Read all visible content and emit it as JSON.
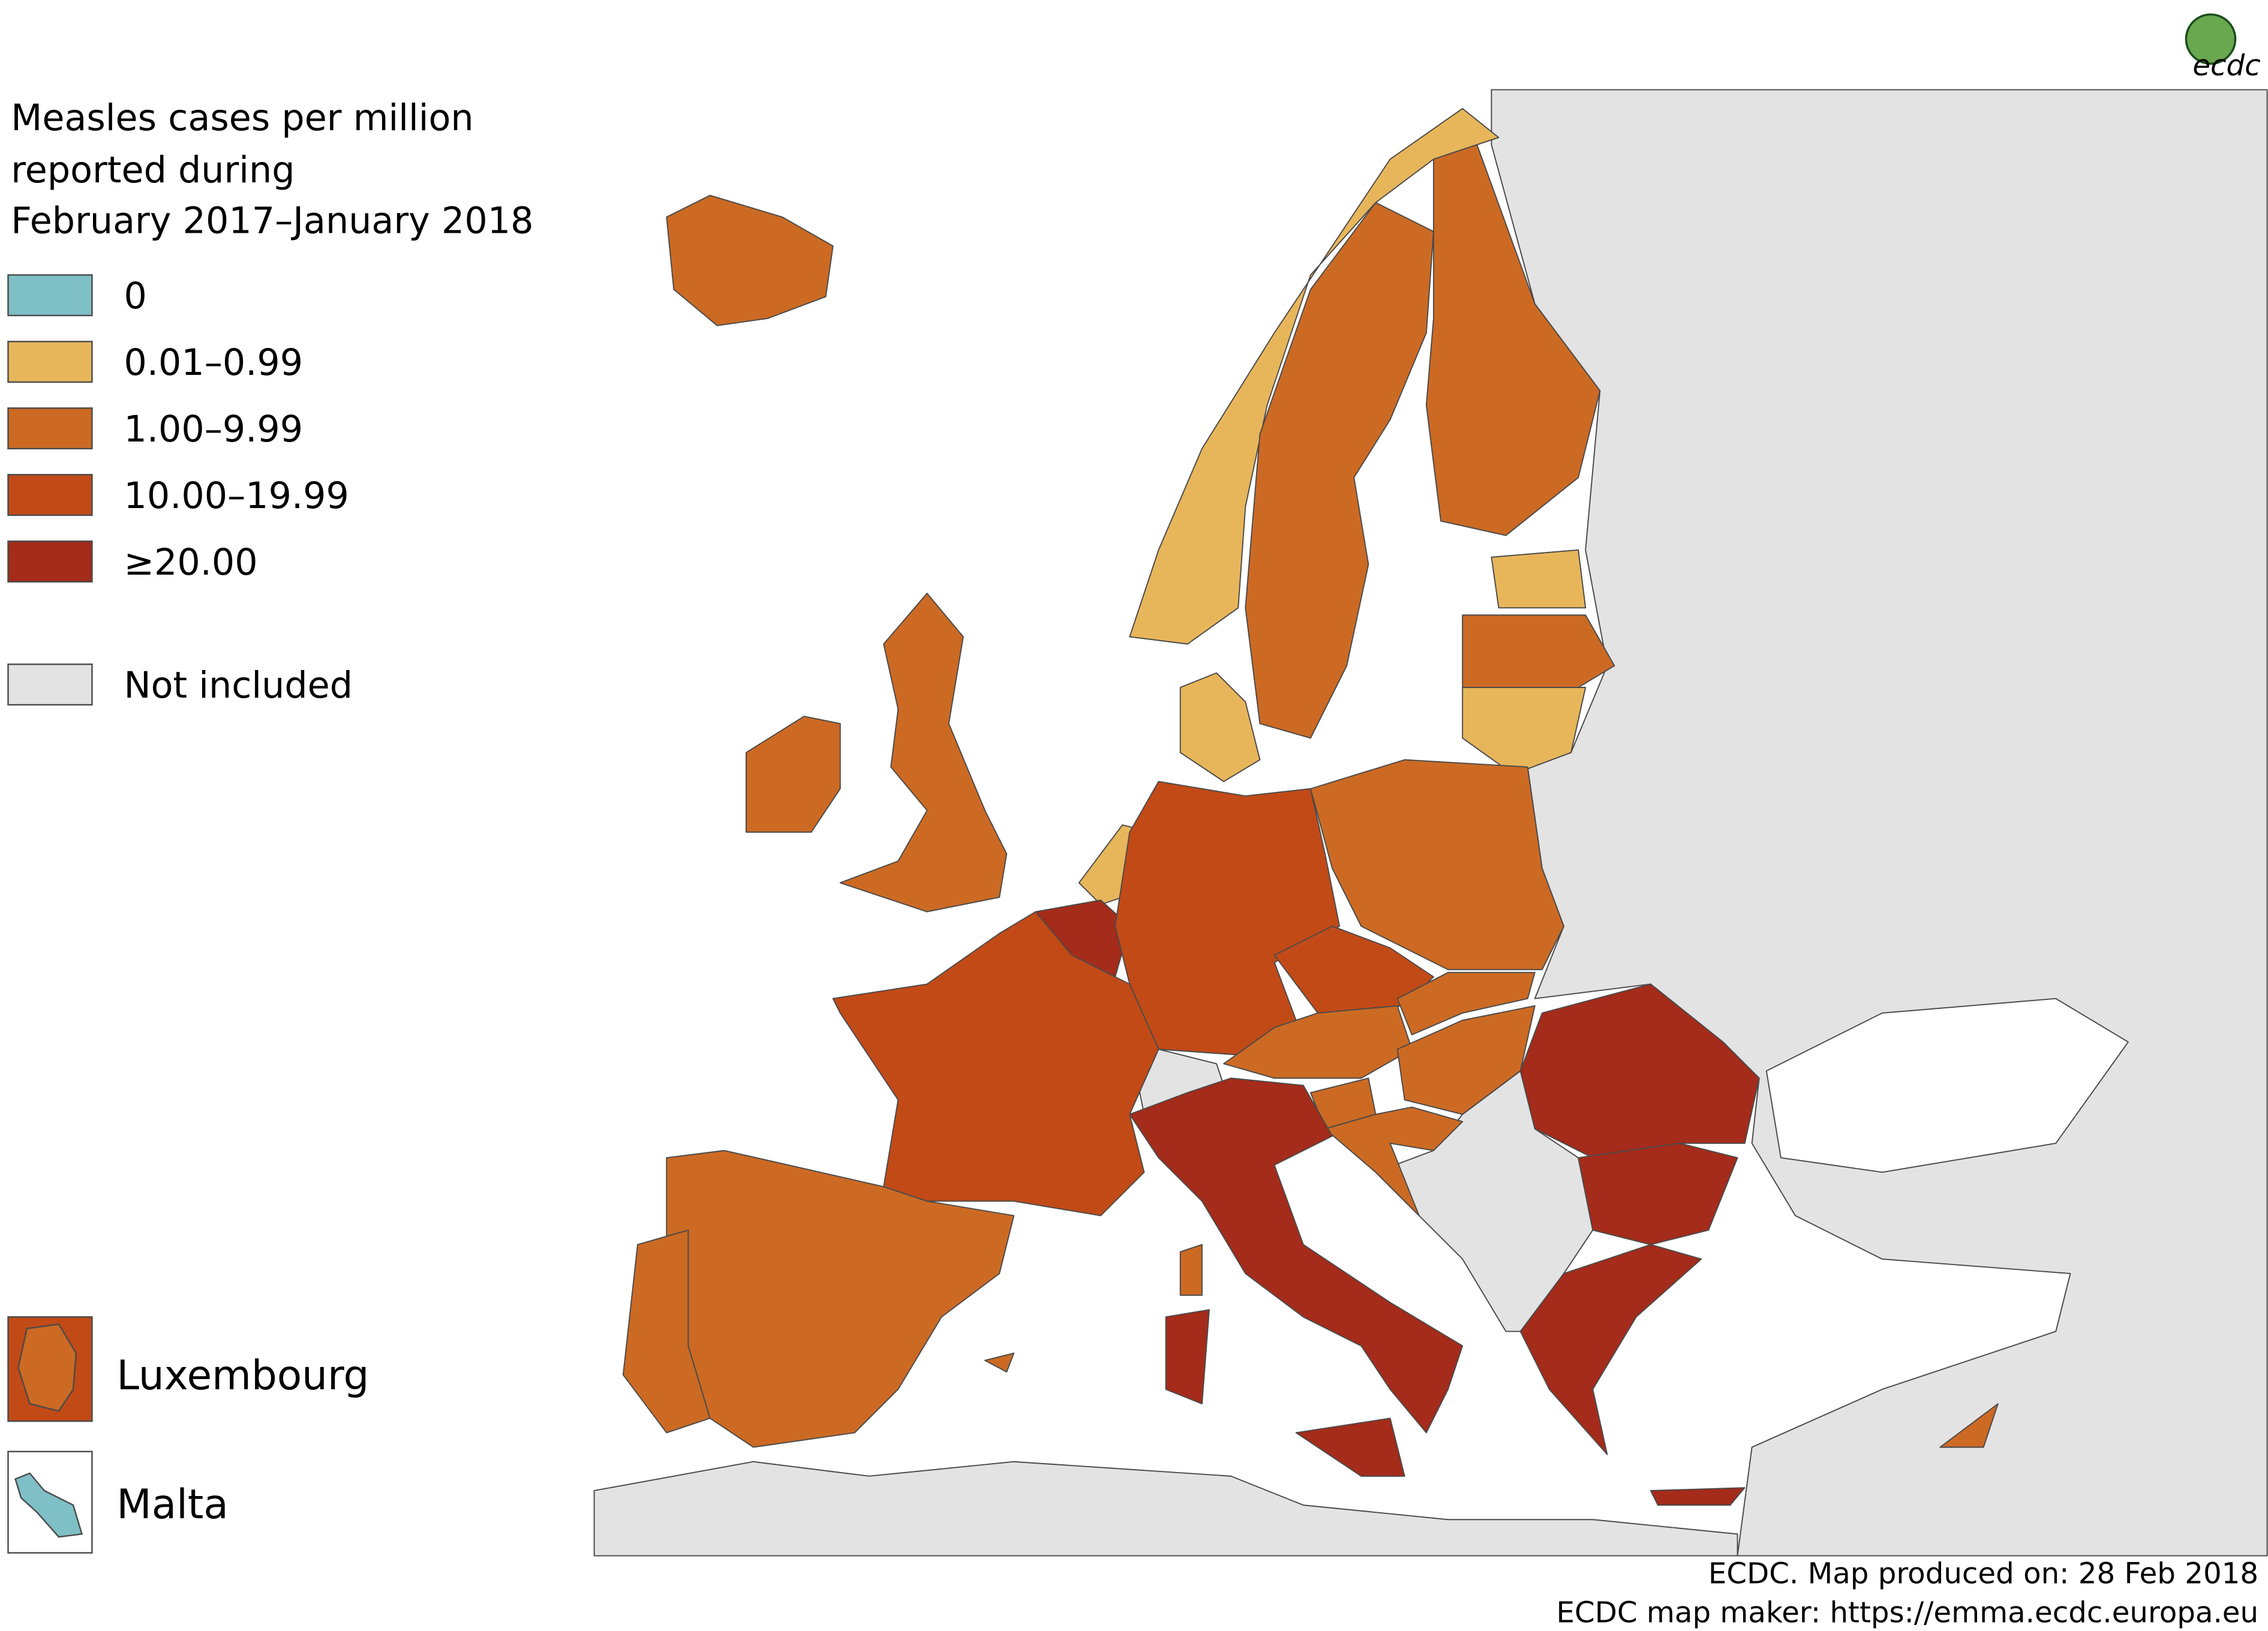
{
  "title_lines": [
    "Measles cases per million",
    "reported during",
    "February 2017–January 2018"
  ],
  "legend": [
    {
      "label": "0",
      "color": "#7fbfc6"
    },
    {
      "label": "0.01–0.99",
      "color": "#e8b65a"
    },
    {
      "label": "1.00–9.99",
      "color": "#cc6a24"
    },
    {
      "label": "10.00–19.99",
      "color": "#c24a17"
    },
    {
      "label": "≥20.00",
      "color": "#a52b1a"
    }
  ],
  "not_included": {
    "label": "Not included",
    "color": "#e3e3e3"
  },
  "insets": [
    "Luxembourg",
    "Malta"
  ],
  "footer": [
    "ECDC. Map produced on: 28 Feb 2018",
    "ECDC map maker: https://emma.ecdc.europa.eu"
  ],
  "logo": "ecdc"
}
